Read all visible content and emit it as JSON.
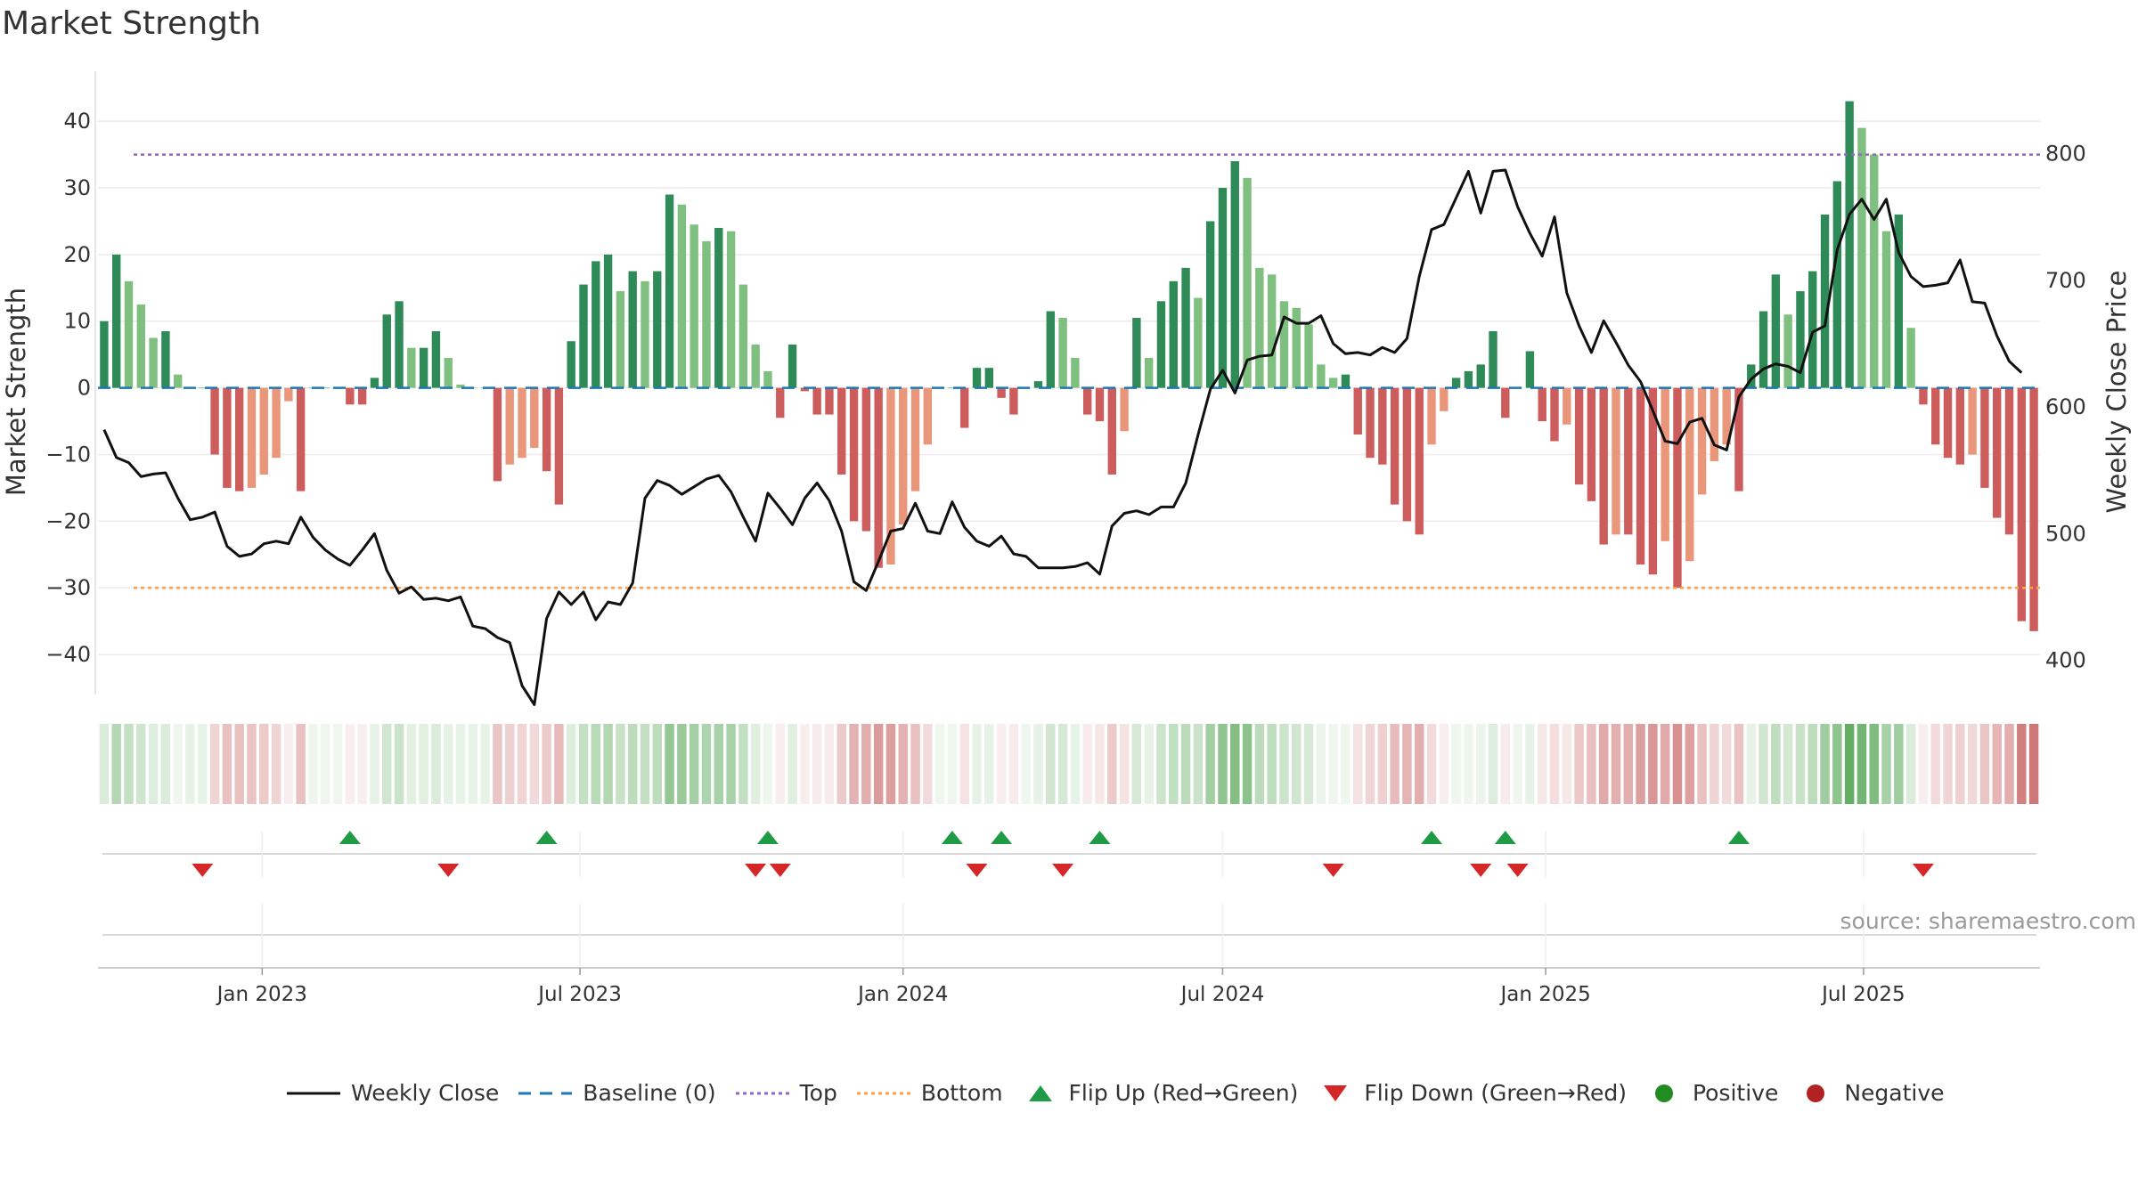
{
  "title": "Market Strength",
  "source": "source: sharemaestro.com",
  "colors": {
    "close_line": "#111111",
    "baseline": "#1f77b4",
    "top": "#9467bd",
    "bottom": "#ff9f4a",
    "flip_up": "#1f9a45",
    "flip_down": "#d62728",
    "positive": "#228b22",
    "negative": "#b22222",
    "pos_strong": "#2e8b57",
    "pos_light": "#7fbf7f",
    "neg_strong": "#cd5c5c",
    "neg_light": "#e9967a"
  },
  "legend": [
    {
      "key": "close",
      "label": "Weekly Close"
    },
    {
      "key": "baseline",
      "label": "Baseline (0)"
    },
    {
      "key": "top",
      "label": "Top"
    },
    {
      "key": "bottom",
      "label": "Bottom"
    },
    {
      "key": "flip_up",
      "label": "Flip Up (Red→Green)"
    },
    {
      "key": "flip_down",
      "label": "Flip Down (Green→Red)"
    },
    {
      "key": "positive",
      "label": "Positive"
    },
    {
      "key": "negative",
      "label": "Negative"
    }
  ],
  "chart_data": {
    "type": "bar",
    "start_date": "2022-10-03",
    "interval_days": 7,
    "ylabel": "Market Strength",
    "ylabel_right": "Weekly Close Price",
    "ylim": [
      -46,
      47.5
    ],
    "ylim_right": [
      373,
      865
    ],
    "yticks": [
      -40,
      -30,
      -20,
      -10,
      0,
      10,
      20,
      30,
      40
    ],
    "yticks_right": [
      400,
      500,
      600,
      700,
      800
    ],
    "top_level": 35,
    "bottom_level": -30,
    "xtick_labels": [
      {
        "date": "2023-01-01",
        "label": "Jan 2023"
      },
      {
        "date": "2023-07-01",
        "label": "Jul 2023"
      },
      {
        "date": "2024-01-01",
        "label": "Jan 2024"
      },
      {
        "date": "2024-07-01",
        "label": "Jul 2024"
      },
      {
        "date": "2025-01-01",
        "label": "Jan 2025"
      },
      {
        "date": "2025-07-01",
        "label": "Jul 2025"
      }
    ],
    "strength": [
      10,
      20,
      16,
      12.5,
      7.5,
      8.5,
      2,
      0,
      0,
      -10,
      -15,
      -15.5,
      -15,
      -13,
      -10.5,
      -2,
      -15.5,
      0,
      0,
      0,
      -2.5,
      -2.5,
      1.5,
      11,
      13,
      6,
      6,
      8.5,
      4.5,
      0.5,
      0,
      0,
      -14,
      -11.5,
      -10.5,
      -9,
      -12.5,
      -17.5,
      7,
      15.5,
      19,
      20,
      14.5,
      17.5,
      16,
      17.5,
      29,
      27.5,
      24.5,
      22,
      24,
      23.5,
      15.5,
      6.5,
      2.5,
      -4.5,
      6.5,
      -0.5,
      -4,
      -4,
      -13,
      -20,
      -21.5,
      -27,
      -26.5,
      -20.5,
      -15.5,
      -8.5,
      0,
      0,
      -6,
      3,
      3,
      -1.5,
      -4,
      0,
      1,
      11.5,
      10.5,
      4.5,
      -4,
      -5,
      -13,
      -6.5,
      10.5,
      4.5,
      13,
      16,
      18,
      13.5,
      25,
      30,
      34,
      31.5,
      18,
      17,
      13,
      12,
      9.5,
      3.5,
      1.5,
      2,
      -7,
      -10.5,
      -11.5,
      -17.5,
      -20,
      -22,
      -8.5,
      -3.5,
      1.5,
      2.5,
      3.5,
      8.5,
      -4.5,
      0,
      5.5,
      -5,
      -8,
      -5.5,
      -14.5,
      -17,
      -23.5,
      -22,
      -22,
      -26.5,
      -28,
      -23,
      -30,
      -26,
      -16,
      -11,
      -8.5,
      -15.5,
      3.5,
      11.5,
      17,
      11,
      14.5,
      17.5,
      26,
      31,
      43,
      39,
      35,
      23.5,
      26,
      9,
      -2.5,
      -8.5,
      -10.5,
      -11.5,
      -10,
      -15,
      -19.5,
      -22,
      -35,
      -36.5
    ],
    "close": [
      582,
      560,
      556,
      545,
      547,
      548,
      528,
      511,
      513,
      517,
      490,
      482,
      484,
      492,
      494,
      492,
      513,
      497,
      487,
      480,
      475,
      487,
      500,
      471,
      453,
      458,
      448,
      449,
      447,
      450,
      427,
      425,
      418,
      414,
      380,
      365,
      433,
      454,
      444,
      454,
      432,
      446,
      444,
      461,
      528,
      542,
      538,
      531,
      537,
      543,
      546,
      533,
      513,
      494,
      532,
      520,
      507,
      528,
      540,
      526,
      502,
      462,
      455,
      478,
      502,
      504,
      524,
      502,
      500,
      525,
      505,
      494,
      490,
      498,
      484,
      482,
      473,
      473,
      473,
      474,
      477,
      468,
      506,
      516,
      518,
      515,
      521,
      521,
      540,
      578,
      614,
      629,
      611,
      637,
      640,
      641,
      671,
      666,
      666,
      672,
      650,
      642,
      643,
      641,
      647,
      643,
      654,
      703,
      740,
      744,
      765,
      786,
      753,
      786,
      787,
      758,
      737,
      719,
      750,
      690,
      664,
      643,
      668,
      651,
      633,
      620,
      597,
      573,
      571,
      588,
      591,
      570,
      566,
      608,
      622,
      630,
      634,
      632,
      627,
      659,
      664,
      724,
      752,
      764,
      748,
      764,
      722,
      703,
      695,
      696,
      698,
      716,
      683,
      682,
      656,
      636,
      627
    ]
  },
  "heat_strip": [
    0.17,
    0.34,
    0.27,
    0.22,
    0.15,
    0.16,
    0.07,
    0.1,
    0.1,
    0.2,
    0.28,
    0.28,
    0.27,
    0.24,
    0.2,
    0.08,
    0.28,
    0.08,
    0.08,
    0.08,
    0.08,
    0.08,
    0.11,
    0.21,
    0.24,
    0.13,
    0.13,
    0.16,
    0.11,
    0.1,
    0.1,
    0.1,
    0.26,
    0.21,
    0.2,
    0.17,
    0.23,
    0.31,
    0.15,
    0.27,
    0.32,
    0.34,
    0.25,
    0.3,
    0.27,
    0.3,
    0.48,
    0.46,
    0.41,
    0.37,
    0.4,
    0.39,
    0.27,
    0.14,
    0.08,
    0.08,
    0.14,
    0.08,
    0.09,
    0.09,
    0.24,
    0.35,
    0.37,
    0.45,
    0.44,
    0.35,
    0.28,
    0.16,
    0.08,
    0.08,
    0.12,
    0.1,
    0.1,
    0.08,
    0.09,
    0.08,
    0.1,
    0.21,
    0.19,
    0.1,
    0.09,
    0.1,
    0.24,
    0.13,
    0.19,
    0.1,
    0.23,
    0.28,
    0.31,
    0.24,
    0.42,
    0.5,
    0.56,
    0.52,
    0.31,
    0.29,
    0.23,
    0.21,
    0.18,
    0.09,
    0.07,
    0.07,
    0.13,
    0.19,
    0.21,
    0.3,
    0.34,
    0.37,
    0.16,
    0.08,
    0.07,
    0.08,
    0.09,
    0.15,
    0.09,
    0.08,
    0.1,
    0.1,
    0.15,
    0.1,
    0.25,
    0.29,
    0.39,
    0.37,
    0.37,
    0.44,
    0.47,
    0.39,
    0.5,
    0.43,
    0.28,
    0.2,
    0.16,
    0.27,
    0.1,
    0.21,
    0.29,
    0.2,
    0.25,
    0.3,
    0.43,
    0.51,
    0.7,
    0.64,
    0.58,
    0.4,
    0.43,
    0.16,
    0.08,
    0.16,
    0.19,
    0.21,
    0.18,
    0.26,
    0.33,
    0.37,
    0.58,
    0.61
  ],
  "flips": {
    "up": [
      20,
      36,
      54,
      69,
      73,
      81,
      108,
      114,
      133
    ],
    "down": [
      8,
      28,
      53,
      55,
      71,
      78,
      100,
      112,
      115,
      148
    ]
  }
}
